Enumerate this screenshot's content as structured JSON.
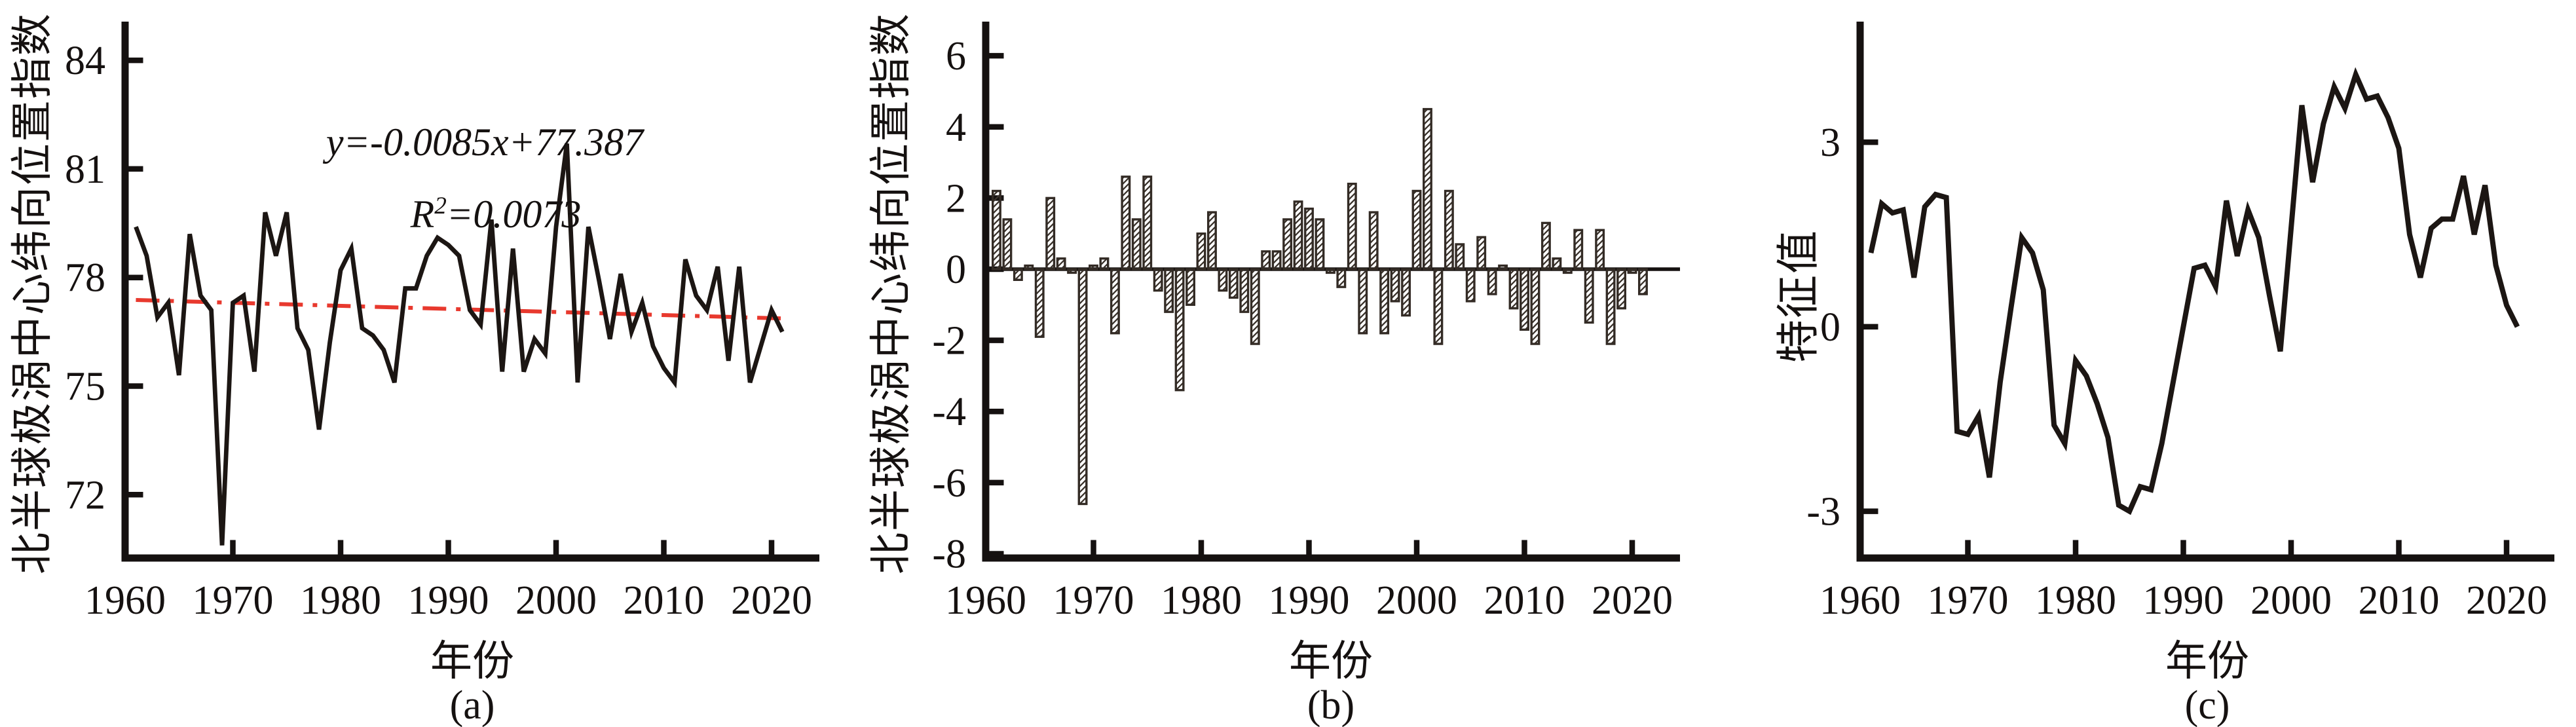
{
  "figure": {
    "background": "#ffffff",
    "axis_color": "#151110",
    "line_color": "#1c1613",
    "trend_color": "#e8392e",
    "bar_fill": "#ffffff",
    "bar_stroke": "#332b25",
    "hatch_color": "#3a322b"
  },
  "annotation": {
    "line1": {
      "var1": "y",
      "eq": "=-0.0085",
      "var2": "x",
      "tail": "+77.387"
    },
    "line2": {
      "var": "R",
      "sup": "2",
      "eq": "=0.0073"
    }
  },
  "chart_data": [
    {
      "type": "line",
      "panel": "a",
      "caption": "(a)",
      "xlabel": "年份",
      "ylabel": "北半球极涡中心纬向位置指数",
      "xlim": [
        1960,
        2023.5
      ],
      "ylim": [
        70.25,
        85.07
      ],
      "xticks": [
        1960,
        1970,
        1980,
        1990,
        2000,
        2010,
        2020
      ],
      "yticks": [
        72,
        75,
        78,
        81,
        84
      ],
      "grid": false,
      "legend": "none",
      "x": [
        1961,
        1962,
        1963,
        1964,
        1965,
        1966,
        1967,
        1968,
        1969,
        1970,
        1971,
        1972,
        1973,
        1974,
        1975,
        1976,
        1977,
        1978,
        1979,
        1980,
        1981,
        1982,
        1983,
        1984,
        1985,
        1986,
        1987,
        1988,
        1989,
        1990,
        1991,
        1992,
        1993,
        1994,
        1995,
        1996,
        1997,
        1998,
        1999,
        2000,
        2001,
        2002,
        2003,
        2004,
        2005,
        2006,
        2007,
        2008,
        2009,
        2010,
        2011,
        2012,
        2013,
        2014,
        2015,
        2016,
        2017,
        2018,
        2019,
        2020,
        2021
      ],
      "values": [
        79.4,
        78.6,
        76.9,
        77.3,
        75.3,
        79.2,
        77.5,
        77.1,
        70.6,
        77.3,
        77.5,
        75.4,
        79.8,
        78.6,
        79.8,
        76.6,
        76.0,
        73.8,
        76.2,
        78.2,
        78.8,
        76.6,
        76.4,
        76.0,
        75.1,
        77.7,
        77.7,
        78.6,
        79.1,
        78.9,
        78.6,
        77.1,
        76.7,
        79.6,
        75.4,
        78.8,
        75.4,
        76.3,
        75.9,
        79.4,
        81.7,
        75.1,
        79.4,
        77.9,
        76.3,
        78.1,
        76.5,
        77.3,
        76.1,
        75.5,
        75.1,
        78.5,
        77.5,
        77.1,
        78.3,
        75.7,
        78.3,
        75.1,
        76.1,
        77.1,
        76.5
      ],
      "trend_line": {
        "style": "dash-dot",
        "color": "#e8392e",
        "slope": -0.0085,
        "intercept": 77.387,
        "start_year": 1961,
        "end_year": 2021,
        "start_value": 77.379,
        "end_value": 76.869
      },
      "annotations": [
        "y=-0.0085x+77.387",
        "R²=0.0073"
      ]
    },
    {
      "type": "bar",
      "panel": "b",
      "caption": "(b)",
      "xlabel": "年份",
      "ylabel": "北半球极涡中心纬向位置指数",
      "xlim": [
        1960,
        2023.5
      ],
      "ylim": [
        -8.12,
        6.96
      ],
      "xticks": [
        1960,
        1970,
        1980,
        1990,
        2000,
        2010,
        2020
      ],
      "yticks": [
        -8,
        -6,
        -4,
        -2,
        0,
        2,
        4,
        6
      ],
      "grid": false,
      "legend": "none",
      "bar_style": "diagonal-hatch",
      "x": [
        1961,
        1962,
        1963,
        1964,
        1965,
        1966,
        1967,
        1968,
        1969,
        1970,
        1971,
        1972,
        1973,
        1974,
        1975,
        1976,
        1977,
        1978,
        1979,
        1980,
        1981,
        1982,
        1983,
        1984,
        1985,
        1986,
        1987,
        1988,
        1989,
        1990,
        1991,
        1992,
        1993,
        1994,
        1995,
        1996,
        1997,
        1998,
        1999,
        2000,
        2001,
        2002,
        2003,
        2004,
        2005,
        2006,
        2007,
        2008,
        2009,
        2010,
        2011,
        2012,
        2013,
        2014,
        2015,
        2016,
        2017,
        2018,
        2019,
        2020,
        2021
      ],
      "values": [
        2.2,
        1.4,
        -0.3,
        0.1,
        -1.9,
        2.0,
        0.3,
        -0.1,
        -6.6,
        0.1,
        0.3,
        -1.8,
        2.6,
        1.4,
        2.6,
        -0.6,
        -1.2,
        -3.4,
        -1.0,
        1.0,
        1.6,
        -0.6,
        -0.8,
        -1.2,
        -2.1,
        0.5,
        0.5,
        1.4,
        1.9,
        1.7,
        1.4,
        -0.1,
        -0.5,
        2.4,
        -1.8,
        1.6,
        -1.8,
        -0.9,
        -1.3,
        2.2,
        4.5,
        -2.1,
        2.2,
        0.7,
        -0.9,
        0.9,
        -0.7,
        0.1,
        -1.1,
        -1.7,
        -2.1,
        1.3,
        0.3,
        -0.1,
        1.1,
        -1.5,
        1.1,
        -2.1,
        -1.1,
        -0.1,
        -0.7
      ]
    },
    {
      "type": "line",
      "panel": "c",
      "caption": "(c)",
      "xlabel": "年份",
      "ylabel": "特征值",
      "xlim": [
        1960,
        2023.5
      ],
      "ylim": [
        -3.76,
        4.96
      ],
      "xticks": [
        1960,
        1970,
        1980,
        1990,
        2000,
        2010,
        2020
      ],
      "yticks": [
        -3,
        0,
        3
      ],
      "grid": false,
      "legend": "none",
      "x": [
        1961,
        1962,
        1963,
        1964,
        1965,
        1966,
        1967,
        1968,
        1969,
        1970,
        1971,
        1972,
        1973,
        1974,
        1975,
        1976,
        1977,
        1978,
        1979,
        1980,
        1981,
        1982,
        1983,
        1984,
        1985,
        1986,
        1987,
        1988,
        1989,
        1990,
        1991,
        1992,
        1993,
        1994,
        1995,
        1996,
        1997,
        1998,
        1999,
        2000,
        2001,
        2002,
        2003,
        2004,
        2005,
        2006,
        2007,
        2008,
        2009,
        2010,
        2011,
        2012,
        2013,
        2014,
        2015,
        2016,
        2017,
        2018,
        2019,
        2020,
        2021
      ],
      "values": [
        1.2,
        2.0,
        1.85,
        1.9,
        0.8,
        1.95,
        2.15,
        2.1,
        -1.7,
        -1.75,
        -1.45,
        -2.45,
        -0.9,
        0.3,
        1.45,
        1.2,
        0.6,
        -1.6,
        -1.9,
        -0.55,
        -0.8,
        -1.25,
        -1.8,
        -2.9,
        -3.0,
        -2.6,
        -2.65,
        -1.9,
        -0.95,
        0.0,
        0.95,
        1.0,
        0.65,
        2.05,
        1.15,
        1.9,
        1.45,
        0.5,
        -0.4,
        1.6,
        3.6,
        2.35,
        3.3,
        3.9,
        3.55,
        4.1,
        3.7,
        3.75,
        3.4,
        2.9,
        1.5,
        0.8,
        1.6,
        1.75,
        1.75,
        2.45,
        1.5,
        2.3,
        1.0,
        0.35,
        0.0
      ]
    }
  ]
}
